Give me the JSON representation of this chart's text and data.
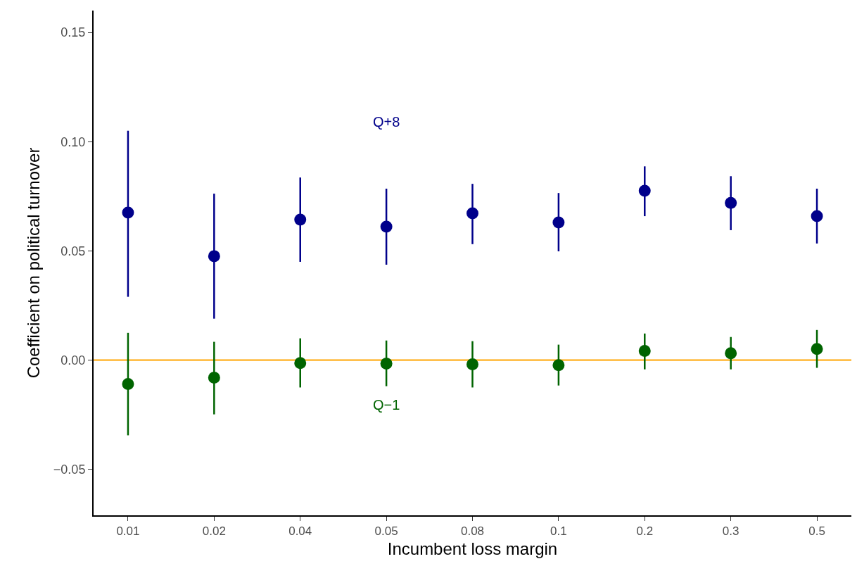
{
  "chart_data": {
    "type": "scatter",
    "xlabel": "Incumbent loss margin",
    "ylabel": "Coefficient on political turnover",
    "categories": [
      "0.01",
      "0.02",
      "0.04",
      "0.05",
      "0.08",
      "0.1",
      "0.2",
      "0.3",
      "0.5"
    ],
    "series": [
      {
        "name": "Q+8",
        "color": "#00008b",
        "values": [
          0.0675,
          0.0476,
          0.0643,
          0.0611,
          0.0672,
          0.063,
          0.0775,
          0.072,
          0.0659
        ],
        "errors": [
          [
            0.029,
            0.105
          ],
          [
            0.019,
            0.0762
          ],
          [
            0.045,
            0.0836
          ],
          [
            0.0437,
            0.0785
          ],
          [
            0.0531,
            0.0807
          ],
          [
            0.0498,
            0.0765
          ],
          [
            0.0659,
            0.0887
          ],
          [
            0.0595,
            0.0842
          ],
          [
            0.0534,
            0.0785
          ]
        ]
      },
      {
        "name": "Q−1",
        "color": "#006400",
        "values": [
          -0.0109,
          -0.008,
          -0.0013,
          -0.0016,
          -0.0019,
          -0.0023,
          0.0042,
          0.0032,
          0.0051
        ],
        "errors": [
          [
            -0.0344,
            0.0125
          ],
          [
            -0.0248,
            0.0084
          ],
          [
            -0.0125,
            0.01
          ],
          [
            -0.0119,
            0.009
          ],
          [
            -0.0125,
            0.0087
          ],
          [
            -0.0116,
            0.0071
          ],
          [
            -0.0042,
            0.0122
          ],
          [
            -0.0042,
            0.0106
          ],
          [
            -0.0035,
            0.0138
          ]
        ]
      }
    ],
    "ref_lines": [
      {
        "axis": "y",
        "value": 0,
        "color": "#ffa500"
      }
    ],
    "ylim": [
      -0.071,
      0.16
    ],
    "yticks": [
      {
        "value": -0.05,
        "label": "−0.05"
      },
      {
        "value": 0,
        "label": "0.00"
      },
      {
        "value": 0.05,
        "label": "0.05"
      },
      {
        "value": 0.1,
        "label": "0.10"
      },
      {
        "value": 0.15,
        "label": "0.15"
      }
    ],
    "marker": "circle",
    "grid": false
  }
}
